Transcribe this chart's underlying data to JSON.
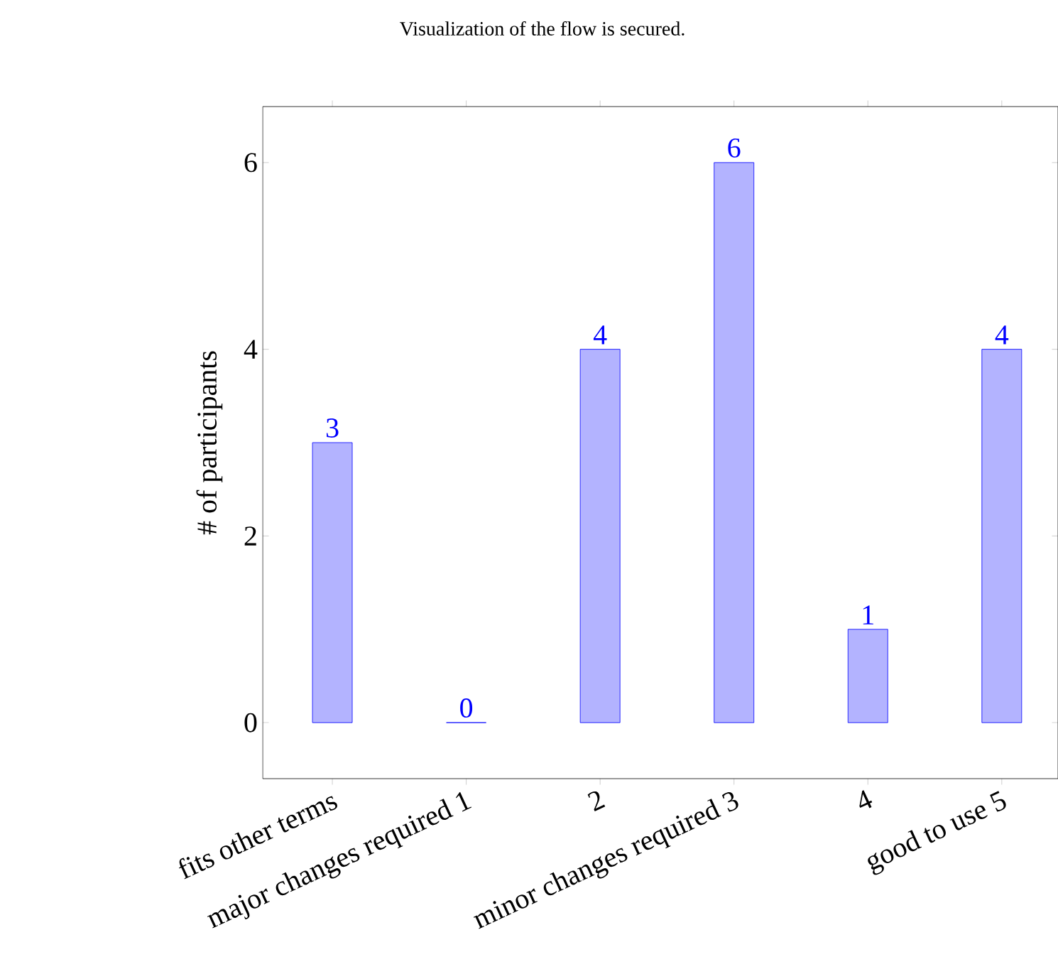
{
  "chart_data": {
    "type": "bar",
    "title": "Visualization of the flow is secured.",
    "ylabel": "# of participants",
    "categories": [
      "fits other terms",
      "major changes required 1",
      "2",
      "minor changes required 3",
      "4",
      "good to use 5"
    ],
    "values": [
      3,
      0,
      4,
      6,
      1,
      4
    ],
    "colors": [
      "#b3b3ff",
      "#0000ff",
      "#b3b3ff",
      "#b3b3ff",
      "#b3b3ff",
      "#b3b3ff"
    ],
    "data_labels": true,
    "ylim": [
      -0.6,
      6.6
    ],
    "yticks": [
      0,
      2,
      4,
      6
    ]
  }
}
